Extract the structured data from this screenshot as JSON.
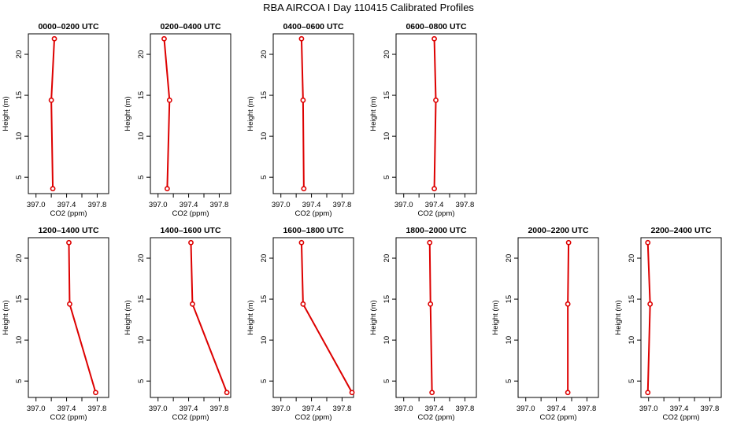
{
  "title": "RBA AIRCOA I  Day 110415  Calibrated Profiles",
  "colors": {
    "profile": "#dd0000",
    "axis": "#000000"
  },
  "chart_data": [
    {
      "type": "line",
      "title": "0000–0200 UTC",
      "xlabel": "CO2 (ppm)",
      "ylabel": "Height (m)",
      "xlim": [
        396.9,
        397.95
      ],
      "ylim": [
        3,
        22.5
      ],
      "xticks": [
        "397.0",
        "397.4",
        "397.8"
      ],
      "yticks": [
        "5",
        "10",
        "15",
        "20"
      ],
      "series": [
        {
          "x": [
            397.22,
            397.2,
            397.24
          ],
          "y": [
            3.6,
            14.4,
            21.9
          ]
        }
      ]
    },
    {
      "type": "line",
      "title": "0200–0400 UTC",
      "xlabel": "CO2 (ppm)",
      "ylabel": "Height (m)",
      "xlim": [
        396.9,
        397.95
      ],
      "ylim": [
        3,
        22.5
      ],
      "xticks": [
        "397.0",
        "397.4",
        "397.8"
      ],
      "yticks": [
        "5",
        "10",
        "15",
        "20"
      ],
      "series": [
        {
          "x": [
            397.12,
            397.15,
            397.08
          ],
          "y": [
            3.6,
            14.4,
            21.9
          ]
        }
      ]
    },
    {
      "type": "line",
      "title": "0400–0600 UTC",
      "xlabel": "CO2 (ppm)",
      "ylabel": "Height (m)",
      "xlim": [
        396.9,
        397.95
      ],
      "ylim": [
        3,
        22.5
      ],
      "xticks": [
        "397.0",
        "397.4",
        "397.8"
      ],
      "yticks": [
        "5",
        "10",
        "15",
        "20"
      ],
      "series": [
        {
          "x": [
            397.3,
            397.29,
            397.27
          ],
          "y": [
            3.6,
            14.4,
            21.9
          ]
        }
      ]
    },
    {
      "type": "line",
      "title": "0600–0800 UTC",
      "xlabel": "CO2 (ppm)",
      "ylabel": "Height (m)",
      "xlim": [
        396.9,
        397.95
      ],
      "ylim": [
        3,
        22.5
      ],
      "xticks": [
        "397.0",
        "397.4",
        "397.8"
      ],
      "yticks": [
        "5",
        "10",
        "15",
        "20"
      ],
      "series": [
        {
          "x": [
            397.4,
            397.42,
            397.4
          ],
          "y": [
            3.6,
            14.4,
            21.9
          ]
        }
      ]
    },
    {
      "type": "line",
      "title": "1200–1400 UTC",
      "xlabel": "CO2 (ppm)",
      "ylabel": "Height (m)",
      "xlim": [
        396.9,
        397.95
      ],
      "ylim": [
        3,
        22.5
      ],
      "xticks": [
        "397.0",
        "397.4",
        "397.8"
      ],
      "yticks": [
        "5",
        "10",
        "15",
        "20"
      ],
      "series": [
        {
          "x": [
            397.78,
            397.44,
            397.43
          ],
          "y": [
            3.6,
            14.4,
            21.9
          ]
        }
      ]
    },
    {
      "type": "line",
      "title": "1400–1600 UTC",
      "xlabel": "CO2 (ppm)",
      "ylabel": "Height (m)",
      "xlim": [
        396.9,
        397.95
      ],
      "ylim": [
        3,
        22.5
      ],
      "xticks": [
        "397.0",
        "397.4",
        "397.8"
      ],
      "yticks": [
        "5",
        "10",
        "15",
        "20"
      ],
      "series": [
        {
          "x": [
            397.9,
            397.45,
            397.43
          ],
          "y": [
            3.6,
            14.4,
            21.9
          ]
        }
      ]
    },
    {
      "type": "line",
      "title": "1600–1800 UTC",
      "xlabel": "CO2 (ppm)",
      "ylabel": "Height (m)",
      "xlim": [
        396.9,
        397.95
      ],
      "ylim": [
        3,
        22.5
      ],
      "xticks": [
        "397.0",
        "397.4",
        "397.8"
      ],
      "yticks": [
        "5",
        "10",
        "15",
        "20"
      ],
      "series": [
        {
          "x": [
            397.93,
            397.29,
            397.27
          ],
          "y": [
            3.6,
            14.4,
            21.9
          ]
        }
      ]
    },
    {
      "type": "line",
      "title": "1800–2000 UTC",
      "xlabel": "CO2 (ppm)",
      "ylabel": "Height (m)",
      "xlim": [
        396.9,
        397.95
      ],
      "ylim": [
        3,
        22.5
      ],
      "xticks": [
        "397.0",
        "397.4",
        "397.8"
      ],
      "yticks": [
        "5",
        "10",
        "15",
        "20"
      ],
      "series": [
        {
          "x": [
            397.37,
            397.35,
            397.34
          ],
          "y": [
            3.6,
            14.4,
            21.9
          ]
        }
      ]
    },
    {
      "type": "line",
      "title": "2000–2200 UTC",
      "xlabel": "CO2 (ppm)",
      "ylabel": "Height (m)",
      "xlim": [
        396.9,
        397.95
      ],
      "ylim": [
        3,
        22.5
      ],
      "xticks": [
        "397.0",
        "397.4",
        "397.8"
      ],
      "yticks": [
        "5",
        "10",
        "15",
        "20"
      ],
      "series": [
        {
          "x": [
            397.55,
            397.55,
            397.56
          ],
          "y": [
            3.6,
            14.4,
            21.9
          ]
        }
      ]
    },
    {
      "type": "line",
      "title": "2200–2400 UTC",
      "xlabel": "CO2 (ppm)",
      "ylabel": "Height (m)",
      "xlim": [
        396.9,
        397.95
      ],
      "ylim": [
        3,
        22.5
      ],
      "xticks": [
        "397.0",
        "397.4",
        "397.8"
      ],
      "yticks": [
        "5",
        "10",
        "15",
        "20"
      ],
      "series": [
        {
          "x": [
            396.99,
            397.02,
            396.99
          ],
          "y": [
            3.6,
            14.4,
            21.9
          ]
        }
      ]
    }
  ]
}
